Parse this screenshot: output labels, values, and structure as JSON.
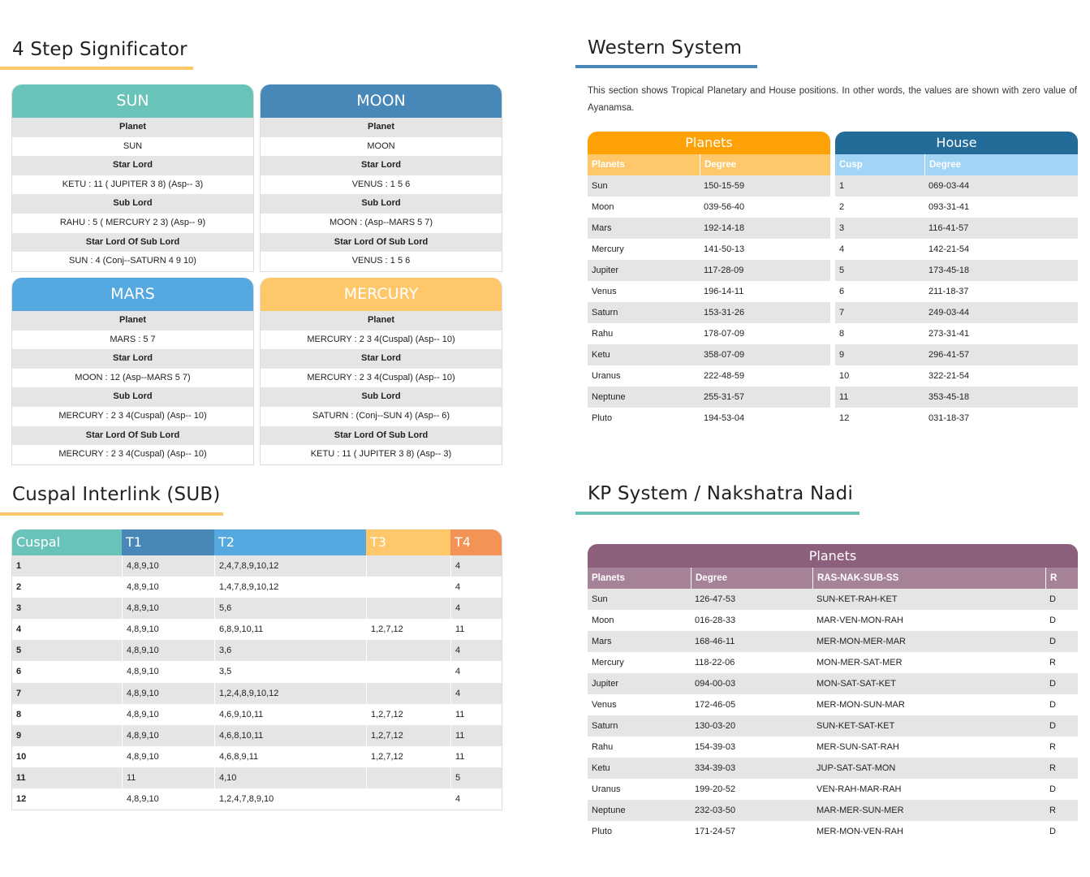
{
  "significator": {
    "title": "4 Step Significator",
    "cards": [
      {
        "name": "SUN",
        "color": "#6ac3b8",
        "rows": [
          {
            "label": "Planet",
            "value": "SUN"
          },
          {
            "label": "Star Lord",
            "value": "KETU : 11 ( JUPITER 3 8) (Asp-- 3)"
          },
          {
            "label": "Sub Lord",
            "value": "RAHU : 5 ( MERCURY 2 3) (Asp-- 9)"
          },
          {
            "label": "Star Lord Of Sub Lord",
            "value": "SUN : 4 (Conj--SATURN 4 9 10)"
          }
        ]
      },
      {
        "name": "MOON",
        "color": "#4888b8",
        "rows": [
          {
            "label": "Planet",
            "value": "MOON"
          },
          {
            "label": "Star Lord",
            "value": "VENUS : 1 5 6"
          },
          {
            "label": "Sub Lord",
            "value": "MOON : (Asp--MARS 5 7)"
          },
          {
            "label": "Star Lord Of Sub Lord",
            "value": "VENUS : 1 5 6"
          }
        ]
      },
      {
        "name": "MARS",
        "color": "#55a8e0",
        "rows": [
          {
            "label": "Planet",
            "value": "MARS : 5 7"
          },
          {
            "label": "Star Lord",
            "value": "MOON : 12 (Asp--MARS 5 7)"
          },
          {
            "label": "Sub Lord",
            "value": "MERCURY : 2 3 4(Cuspal) (Asp-- 10)"
          },
          {
            "label": "Star Lord Of Sub Lord",
            "value": "MERCURY : 2 3 4(Cuspal) (Asp-- 10)"
          }
        ]
      },
      {
        "name": "MERCURY",
        "color": "#fdc76a",
        "rows": [
          {
            "label": "Planet",
            "value": "MERCURY : 2 3 4(Cuspal) (Asp-- 10)"
          },
          {
            "label": "Star Lord",
            "value": "MERCURY : 2 3 4(Cuspal) (Asp-- 10)"
          },
          {
            "label": "Sub Lord",
            "value": "SATURN : (Conj--SUN 4) (Asp-- 6)"
          },
          {
            "label": "Star Lord Of Sub Lord",
            "value": "KETU : 11 ( JUPITER 3 8) (Asp-- 3)"
          }
        ]
      }
    ]
  },
  "western": {
    "title": "Western System",
    "description": "This section shows Tropical Planetary and House positions. In other words, the values are shown with zero value of Ayanamsa.",
    "planets": {
      "header": "Planets",
      "col1": "Planets",
      "col2": "Degree",
      "rows": [
        [
          "Sun",
          "150-15-59"
        ],
        [
          "Moon",
          "039-56-40"
        ],
        [
          "Mars",
          "192-14-18"
        ],
        [
          "Mercury",
          "141-50-13"
        ],
        [
          "Jupiter",
          "117-28-09"
        ],
        [
          "Venus",
          "196-14-11"
        ],
        [
          "Saturn",
          "153-31-26"
        ],
        [
          "Rahu",
          "178-07-09"
        ],
        [
          "Ketu",
          "358-07-09"
        ],
        [
          "Uranus",
          "222-48-59"
        ],
        [
          "Neptune",
          "255-31-57"
        ],
        [
          "Pluto",
          "194-53-04"
        ]
      ]
    },
    "house": {
      "header": "House",
      "col1": "Cusp",
      "col2": "Degree",
      "rows": [
        [
          "1",
          "069-03-44"
        ],
        [
          "2",
          "093-31-41"
        ],
        [
          "3",
          "116-41-57"
        ],
        [
          "4",
          "142-21-54"
        ],
        [
          "5",
          "173-45-18"
        ],
        [
          "6",
          "211-18-37"
        ],
        [
          "7",
          "249-03-44"
        ],
        [
          "8",
          "273-31-41"
        ],
        [
          "9",
          "296-41-57"
        ],
        [
          "10",
          "322-21-54"
        ],
        [
          "11",
          "353-45-18"
        ],
        [
          "12",
          "031-18-37"
        ]
      ]
    }
  },
  "cuspal": {
    "title": "Cuspal Interlink (SUB)",
    "columns": [
      "Cuspal",
      "T1",
      "T2",
      "T3",
      "T4"
    ],
    "rows": [
      [
        "1",
        "4,8,9,10",
        "2,4,7,8,9,10,12",
        "",
        "4"
      ],
      [
        "2",
        "4,8,9,10",
        "1,4,7,8,9,10,12",
        "",
        "4"
      ],
      [
        "3",
        "4,8,9,10",
        "5,6",
        "",
        "4"
      ],
      [
        "4",
        "4,8,9,10",
        "6,8,9,10,11",
        "1,2,7,12",
        "11"
      ],
      [
        "5",
        "4,8,9,10",
        "3,6",
        "",
        "4"
      ],
      [
        "6",
        "4,8,9,10",
        "3,5",
        "",
        "4"
      ],
      [
        "7",
        "4,8,9,10",
        "1,2,4,8,9,10,12",
        "",
        "4"
      ],
      [
        "8",
        "4,8,9,10",
        "4,6,9,10,11",
        "1,2,7,12",
        "11"
      ],
      [
        "9",
        "4,8,9,10",
        "4,6,8,10,11",
        "1,2,7,12",
        "11"
      ],
      [
        "10",
        "4,8,9,10",
        "4,6,8,9,11",
        "1,2,7,12",
        "11"
      ],
      [
        "11",
        "11",
        "4,10",
        "",
        "5"
      ],
      [
        "12",
        "4,8,9,10",
        "1,2,4,7,8,9,10",
        "",
        "4"
      ]
    ]
  },
  "kp": {
    "title": "KP System / Nakshatra Nadi",
    "header": "Planets",
    "columns": [
      "Planets",
      "Degree",
      "RAS-NAK-SUB-SS",
      "R"
    ],
    "rows": [
      [
        "Sun",
        "126-47-53",
        "SUN-KET-RAH-KET",
        "D"
      ],
      [
        "Moon",
        "016-28-33",
        "MAR-VEN-MON-RAH",
        "D"
      ],
      [
        "Mars",
        "168-46-11",
        "MER-MON-MER-MAR",
        "D"
      ],
      [
        "Mercury",
        "118-22-06",
        "MON-MER-SAT-MER",
        "R"
      ],
      [
        "Jupiter",
        "094-00-03",
        "MON-SAT-SAT-KET",
        "D"
      ],
      [
        "Venus",
        "172-46-05",
        "MER-MON-SUN-MAR",
        "D"
      ],
      [
        "Saturn",
        "130-03-20",
        "SUN-KET-SAT-KET",
        "D"
      ],
      [
        "Rahu",
        "154-39-03",
        "MER-SUN-SAT-RAH",
        "R"
      ],
      [
        "Ketu",
        "334-39-03",
        "JUP-SAT-SAT-MON",
        "R"
      ],
      [
        "Uranus",
        "199-20-52",
        "VEN-RAH-MAR-RAH",
        "D"
      ],
      [
        "Neptune",
        "232-03-50",
        "MAR-MER-SUN-MER",
        "R"
      ],
      [
        "Pluto",
        "171-24-57",
        "MER-MON-VEN-RAH",
        "D"
      ]
    ]
  }
}
